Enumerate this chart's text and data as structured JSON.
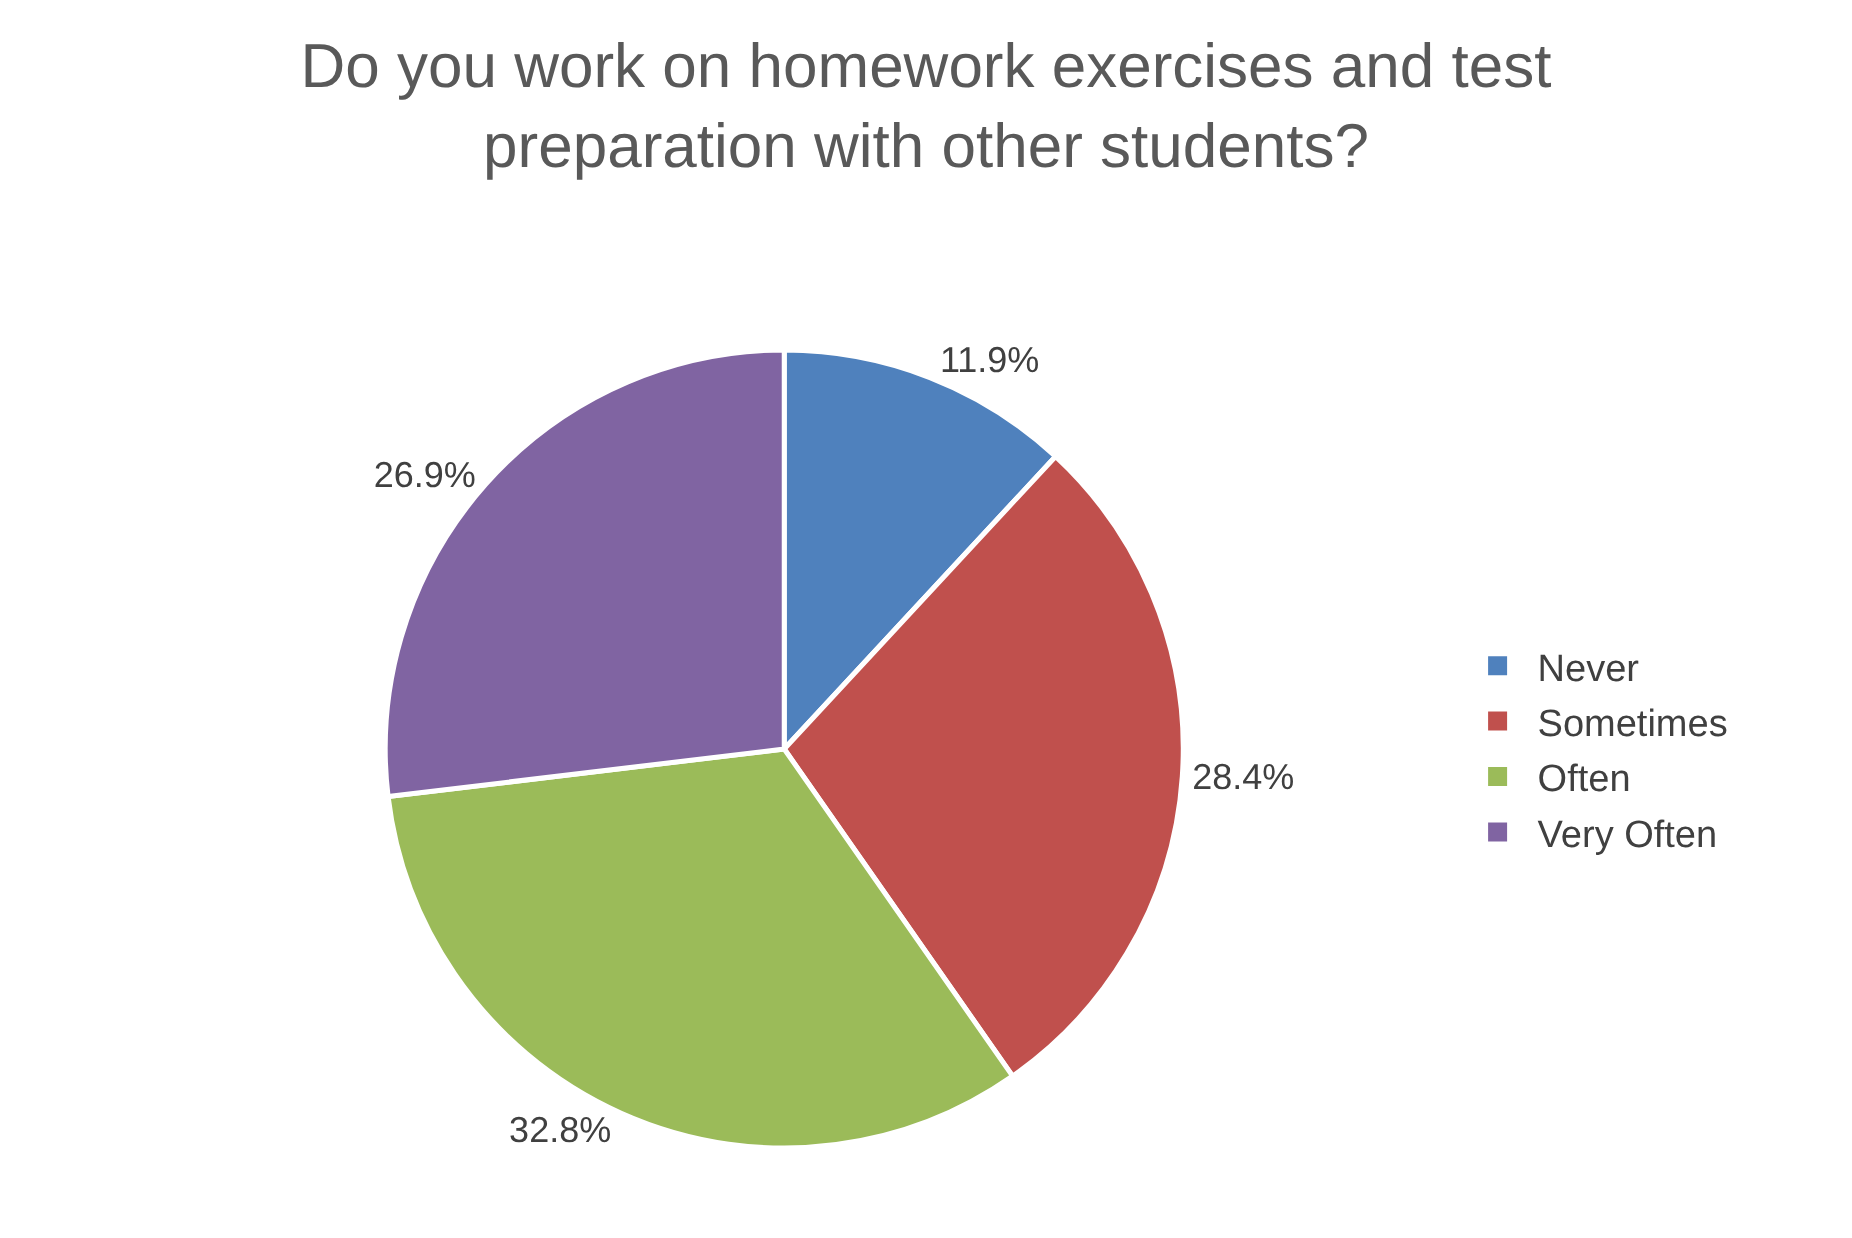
{
  "chart_data": {
    "type": "pie",
    "title": "Do you work on homework exercises and test preparation with other students?",
    "categories": [
      "Never",
      "Sometimes",
      "Often",
      "Very Often"
    ],
    "values": [
      11.9,
      28.4,
      32.8,
      26.9
    ],
    "value_labels": [
      "11.9%",
      "28.4%",
      "32.8%",
      "26.9%"
    ],
    "colors": [
      "#4f81bd",
      "#c0504d",
      "#9bbb59",
      "#8064a2"
    ],
    "legend": "right"
  }
}
